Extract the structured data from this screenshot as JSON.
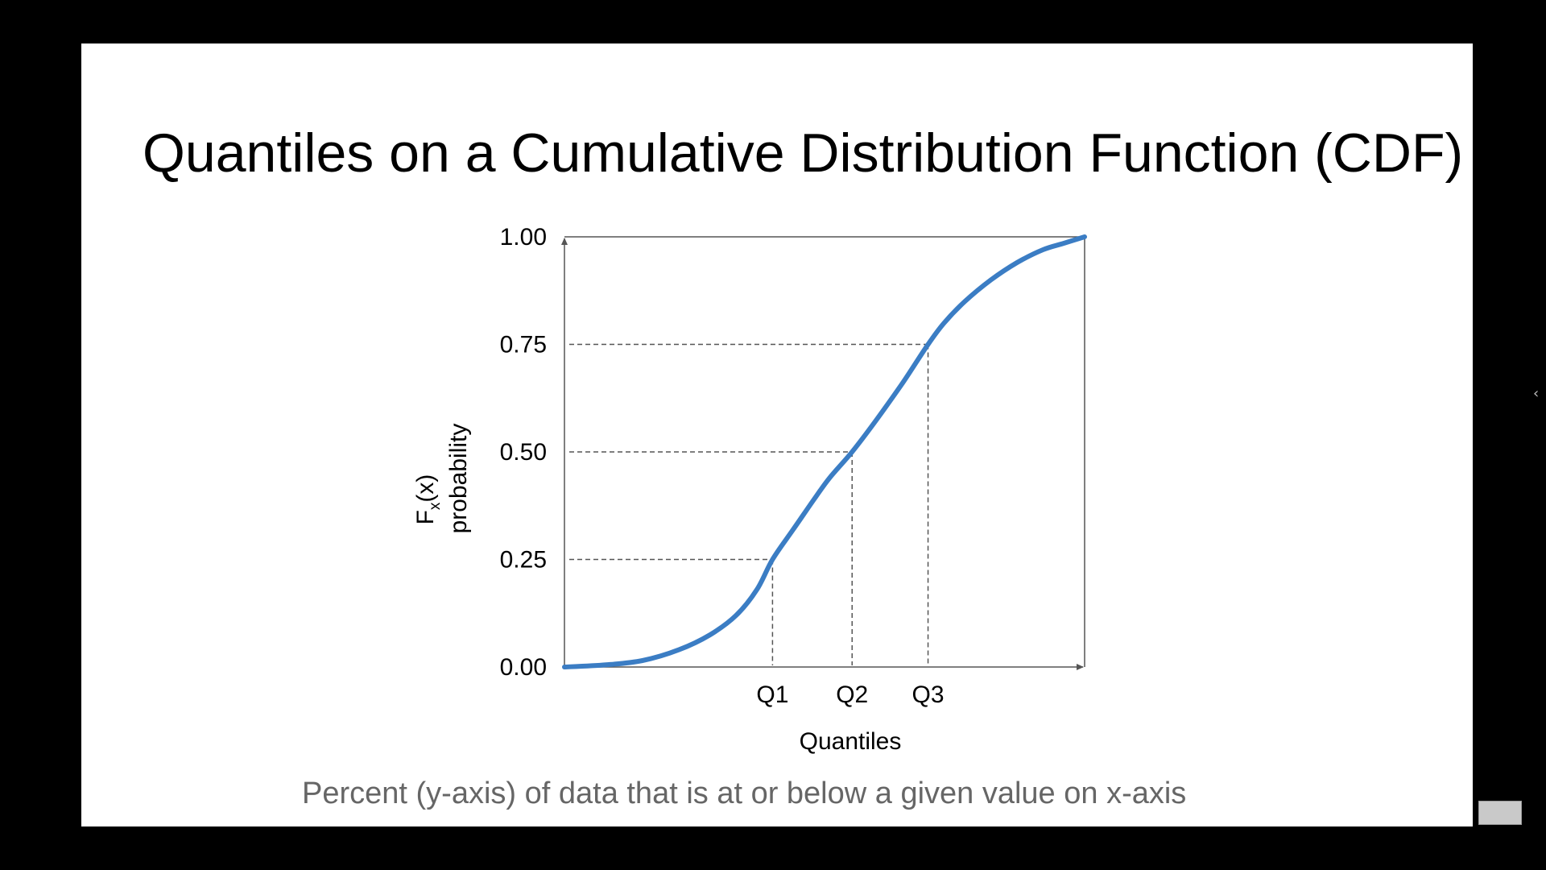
{
  "slide": {
    "title": "Quantiles on a Cumulative Distribution Function (CDF)",
    "caption": "Percent (y-axis) of data that is at or below a given value on x-axis"
  },
  "chart_data": {
    "type": "line",
    "title": "",
    "xlabel": "Quantiles",
    "ylabel_line1": "F",
    "ylabel_sub": "x",
    "ylabel_paren": "(x)",
    "ylabel_line2": "probability",
    "ylim": [
      0,
      1
    ],
    "y_ticks": [
      {
        "value": 0.0,
        "label": "0.00"
      },
      {
        "value": 0.25,
        "label": "0.25"
      },
      {
        "value": 0.5,
        "label": "0.50"
      },
      {
        "value": 0.75,
        "label": "0.75"
      },
      {
        "value": 1.0,
        "label": "1.00"
      }
    ],
    "quantiles": [
      {
        "label": "Q1",
        "x": 0.4,
        "p": 0.25
      },
      {
        "label": "Q2",
        "x": 0.553,
        "p": 0.5
      },
      {
        "label": "Q3",
        "x": 0.699,
        "p": 0.75
      }
    ],
    "series": [
      {
        "color": "#3b7dc4",
        "x": [
          0,
          0.08,
          0.15,
          0.22,
          0.28,
          0.33,
          0.37,
          0.4,
          0.44,
          0.48,
          0.51,
          0.553,
          0.6,
          0.65,
          0.699,
          0.73,
          0.77,
          0.82,
          0.87,
          0.92,
          0.96,
          1.0
        ],
        "y": [
          0,
          0.005,
          0.015,
          0.04,
          0.075,
          0.12,
          0.18,
          0.25,
          0.32,
          0.39,
          0.44,
          0.5,
          0.575,
          0.66,
          0.75,
          0.8,
          0.85,
          0.9,
          0.94,
          0.97,
          0.985,
          1.0
        ]
      }
    ],
    "grid": false,
    "reference_lines": "dashed"
  },
  "ui": {
    "side_arrow": "‹"
  }
}
